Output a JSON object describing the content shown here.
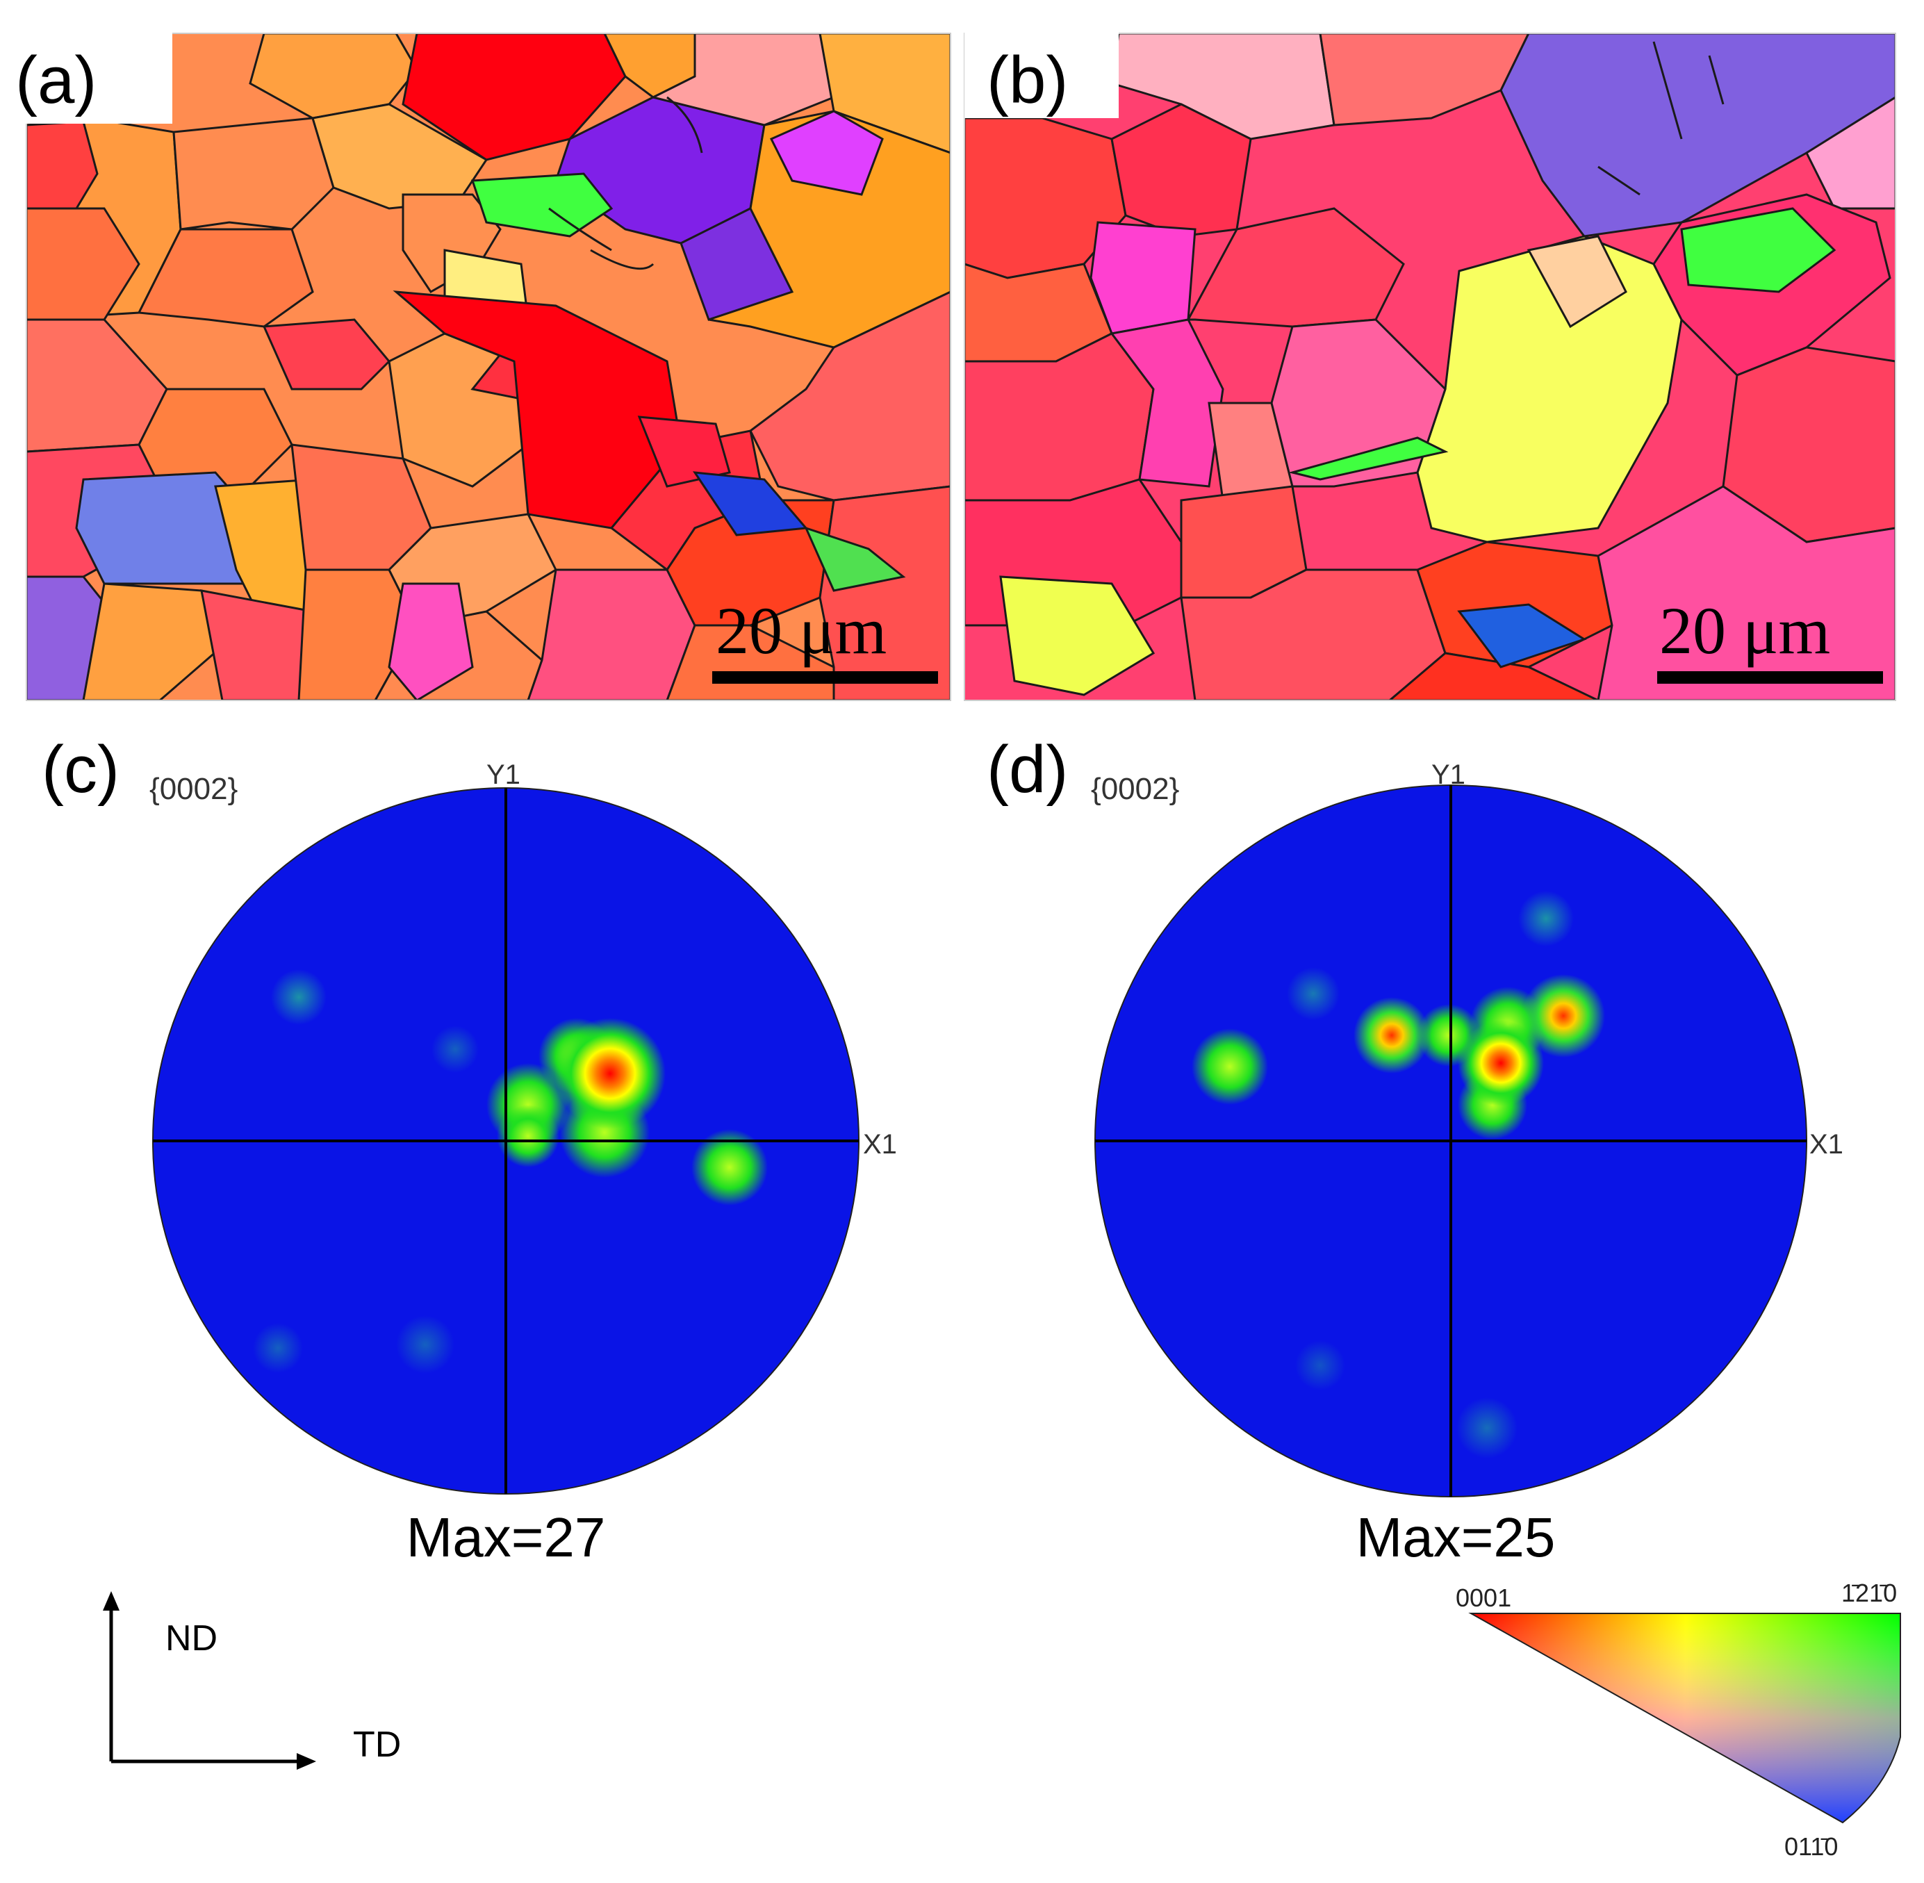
{
  "panels": {
    "a": {
      "label": "(a)",
      "scale_bar": "20 μm"
    },
    "b": {
      "label": "(b)",
      "scale_bar": "20 μm"
    },
    "c": {
      "label": "(c)",
      "plane": "{0002}",
      "y_axis": "Y1",
      "x_axis": "X1",
      "max": "Max=27"
    },
    "d": {
      "label": "(d)",
      "plane": "{0002}",
      "y_axis": "Y1",
      "x_axis": "X1",
      "max": "Max=25"
    }
  },
  "axes_indicator": {
    "vertical": "ND",
    "horizontal": "TD"
  },
  "ipf_legend": {
    "corner_0001": "0001",
    "corner_1210": "1̄21̄0",
    "corner_0110": "011̄0"
  },
  "colors": {
    "pf_background": "#0a14e6",
    "grain_boundary": "#1a1a1a"
  }
}
